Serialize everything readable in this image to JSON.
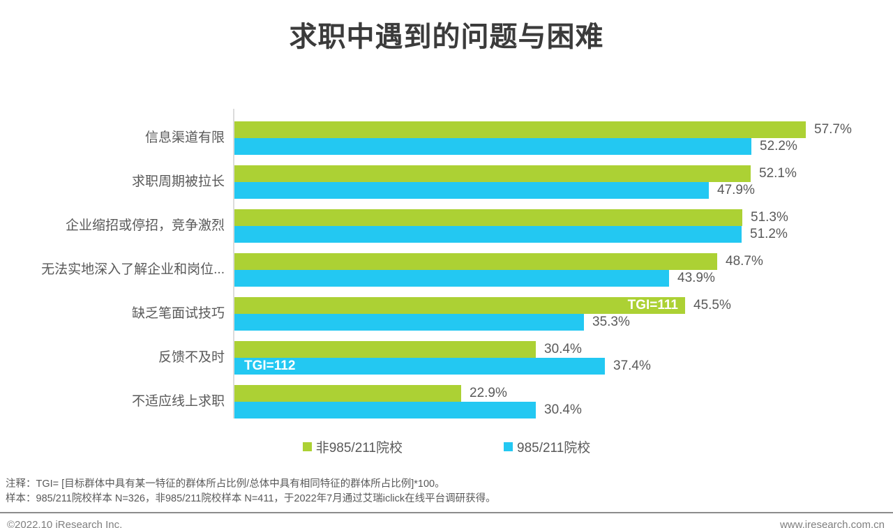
{
  "title": "求职中遇到的问题与困难",
  "chart_data": {
    "type": "bar",
    "orientation": "horizontal",
    "value_suffix": "%",
    "xlim": [
      0,
      62
    ],
    "grid": false,
    "legend_position": "bottom-center",
    "categories": [
      "信息渠道有限",
      "求职周期被拉长",
      "企业缩招或停招，竞争激烈",
      "无法实地深入了解企业和岗位...",
      "缺乏笔面试技巧",
      "反馈不及时",
      "不适应线上求职"
    ],
    "series": [
      {
        "name": "非985/211院校",
        "color": "#acd134",
        "values": [
          57.7,
          52.1,
          51.3,
          48.7,
          45.5,
          30.4,
          22.9
        ]
      },
      {
        "name": "985/211院校",
        "color": "#23c8f2",
        "values": [
          52.2,
          47.9,
          51.2,
          43.9,
          35.3,
          37.4,
          30.4
        ]
      }
    ],
    "tgi_labels": [
      {
        "series_index": 0,
        "row_index": 4,
        "text": "TGI=111",
        "align": "right"
      },
      {
        "series_index": 1,
        "row_index": 5,
        "text": "TGI=112",
        "align": "left"
      }
    ]
  },
  "colors": {
    "non985_green": "#acd134",
    "s985_blue": "#23c8f2",
    "text_gray": "#595959",
    "title_gray": "#3b3b3b"
  },
  "notes": [
    "注释：TGI= [目标群体中具有某一特征的群体所占比例/总体中具有相同特征的群体所占比例]*100。",
    "样本：985/211院校样本 N=326，非985/211院校样本 N=411，于2022年7月通过艾瑞iclick在线平台调研获得。"
  ],
  "footer": {
    "left": "©2022.10 iResearch Inc.",
    "right": "www.iresearch.com.cn"
  }
}
